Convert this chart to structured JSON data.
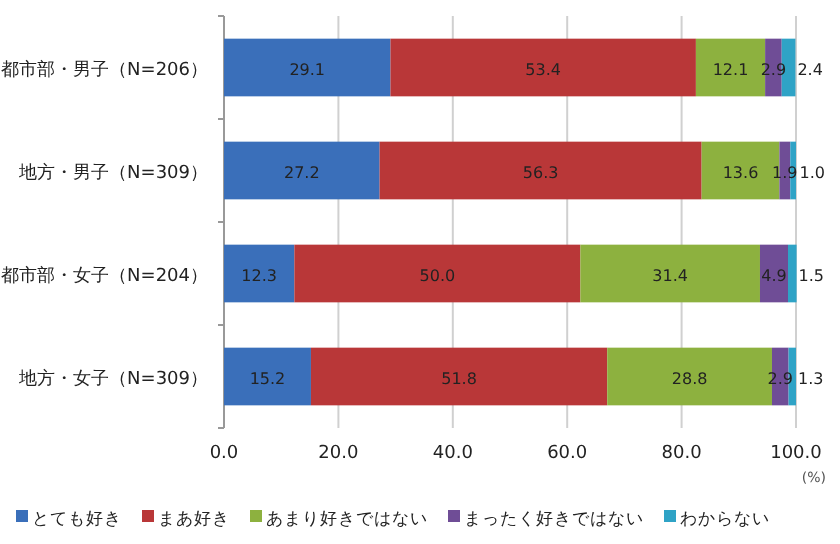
{
  "chart_data": {
    "type": "bar",
    "orientation": "horizontal",
    "stacked": true,
    "categories": [
      "都市部・男子（N=206）",
      "地方・男子（N=309）",
      "都市部・女子（N=204）",
      "地方・女子（N=309）"
    ],
    "series": [
      {
        "name": "とても好き",
        "color": "#3a6fba",
        "values": [
          29.1,
          27.2,
          12.3,
          15.2
        ]
      },
      {
        "name": "まあ好き",
        "color": "#b93738",
        "values": [
          53.4,
          56.3,
          50.0,
          51.8
        ]
      },
      {
        "name": "あまり好きではない",
        "color": "#8db13f",
        "values": [
          12.1,
          13.6,
          31.4,
          28.8
        ]
      },
      {
        "name": "まったく好きではない",
        "color": "#6f4d96",
        "values": [
          2.9,
          1.9,
          4.9,
          2.9
        ]
      },
      {
        "name": "わからない",
        "color": "#2fa3c6",
        "values": [
          2.4,
          1.0,
          1.5,
          1.3
        ]
      }
    ],
    "xlim": [
      0,
      100
    ],
    "xticks": [
      {
        "value": 0,
        "label": "0.0"
      },
      {
        "value": 20,
        "label": "20.0"
      },
      {
        "value": 40,
        "label": "40.0"
      },
      {
        "value": 60,
        "label": "60.0"
      },
      {
        "value": 80,
        "label": "80.0"
      },
      {
        "value": 100,
        "label": "100.0"
      }
    ],
    "xlabel": "(%)",
    "grid": "x",
    "legend": "bottom",
    "value_labels": [
      [
        "29.1",
        "27.2",
        "12.3",
        "15.2"
      ],
      [
        "53.4",
        "56.3",
        "50.0",
        "51.8"
      ],
      [
        "12.1",
        "13.6",
        "31.4",
        "28.8"
      ],
      [
        "2.9",
        "1.9",
        "4.9",
        "2.9"
      ],
      [
        "2.4",
        "1.0",
        "1.5",
        "1.3"
      ]
    ]
  }
}
